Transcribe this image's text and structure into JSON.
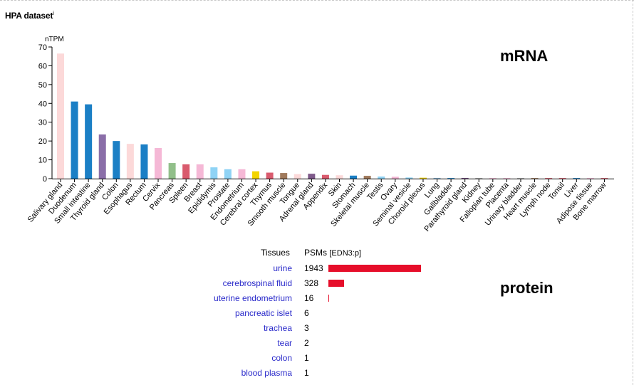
{
  "header": {
    "title": "HPA dataset",
    "info_icon": "i"
  },
  "labels": {
    "mrna": "mRNA",
    "protein": "protein"
  },
  "chart_data": {
    "type": "bar",
    "ylabel": "nTPM",
    "ylim": [
      0,
      70
    ],
    "yticks": [
      0,
      10,
      20,
      30,
      40,
      50,
      60,
      70
    ],
    "grid": false,
    "categories": [
      "Salivary gland",
      "Duodenum",
      "Small intestine",
      "Thyroid gland",
      "Colon",
      "Esophagus",
      "Rectum",
      "Cervix",
      "Pancreas",
      "Spleen",
      "Breast",
      "Epididymis",
      "Prostate",
      "Endometrium",
      "Cerebral cortex",
      "Thymus",
      "Smooth muscle",
      "Tongue",
      "Adrenal gland",
      "Appendix",
      "Skin",
      "Stomach",
      "Skeletal muscle",
      "Testis",
      "Ovary",
      "Seminal vesicle",
      "Choroid plexus",
      "Lung",
      "Gallbladder",
      "Parathyroid gland",
      "Kidney",
      "Fallopian tube",
      "Placenta",
      "Urinary bladder",
      "Heart muscle",
      "Lymph node",
      "Tonsil",
      "Liver",
      "Adipose tissue",
      "Bone marrow"
    ],
    "values": [
      66.5,
      41,
      39.5,
      23.5,
      20,
      18.5,
      18.2,
      16.3,
      8.3,
      7.6,
      7.6,
      6,
      5,
      5,
      3.9,
      3.2,
      3,
      2.4,
      2.6,
      2,
      1.8,
      1.6,
      1.5,
      1.1,
      1,
      0.6,
      0.5,
      0.4,
      0.3,
      0.4,
      0.2,
      0.2,
      0.2,
      0.2,
      0.1,
      0.1,
      0.1,
      0.1,
      0.1,
      0.1
    ],
    "colors": [
      "#fcd9d9",
      "#1b7fc5",
      "#1b7fc5",
      "#8a6ea8",
      "#1b7fc5",
      "#fcd9d9",
      "#1b7fc5",
      "#f5b8d6",
      "#91bf8a",
      "#d95b6e",
      "#f5b8d6",
      "#8fd3f5",
      "#8fd3f5",
      "#f5b8d6",
      "#f2d400",
      "#d95b6e",
      "#a07a5c",
      "#fcd9d9",
      "#7e5a8a",
      "#d95b6e",
      "#fcd9d9",
      "#1b7fc5",
      "#a07a5c",
      "#8fd3f5",
      "#f5b8d6",
      "#8fd3f5",
      "#f2d400",
      "#8fb8d6",
      "#1b7fc5",
      "#7e5a8a",
      "#a0a0a0",
      "#f5b8d6",
      "#f5b8d6",
      "#a0a0a0",
      "#a07a5c",
      "#d95b6e",
      "#d95b6e",
      "#1b7fc5",
      "#f5b8d6",
      "#d95b6e"
    ]
  },
  "protein_table": {
    "col_tissues": "Tissues",
    "col_psms": "PSMs",
    "col_psms_id": "[EDN3:p]",
    "max_psm": 1943,
    "rows": [
      {
        "tissue": "urine",
        "psms": "1943",
        "value": 1943
      },
      {
        "tissue": "cerebrospinal fluid",
        "psms": "328",
        "value": 328
      },
      {
        "tissue": "uterine endometrium",
        "psms": "16",
        "value": 16
      },
      {
        "tissue": "pancreatic islet",
        "psms": "6",
        "value": 6
      },
      {
        "tissue": "trachea",
        "psms": "3",
        "value": 3
      },
      {
        "tissue": "tear",
        "psms": "2",
        "value": 2
      },
      {
        "tissue": "colon",
        "psms": "1",
        "value": 1
      },
      {
        "tissue": "blood plasma",
        "psms": "1",
        "value": 1
      }
    ]
  }
}
